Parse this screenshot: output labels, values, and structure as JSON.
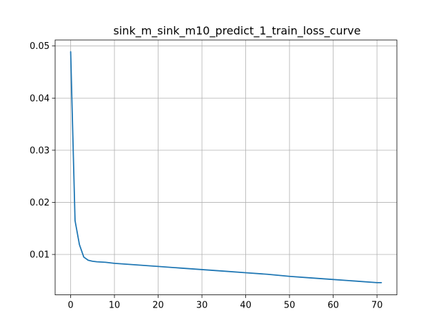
{
  "chart_data": {
    "type": "line",
    "title": "sink_m_sink_m10_predict_1_train_loss_curve",
    "xlabel": "",
    "ylabel": "",
    "xlim": [
      -3.55,
      74.55
    ],
    "ylim": [
      0.00225,
      0.05115
    ],
    "grid": true,
    "x_ticks": [
      0,
      10,
      20,
      30,
      40,
      50,
      60,
      70
    ],
    "x_tick_labels": [
      "0",
      "10",
      "20",
      "30",
      "40",
      "50",
      "60",
      "70"
    ],
    "y_ticks": [
      0.01,
      0.02,
      0.03,
      0.04,
      0.05
    ],
    "y_tick_labels": [
      "0.01",
      "0.02",
      "0.03",
      "0.04",
      "0.05"
    ],
    "series": [
      {
        "color": "#1f77b4",
        "x": [
          0,
          1,
          2,
          3,
          4,
          5,
          6,
          8,
          10,
          15,
          20,
          25,
          30,
          35,
          40,
          45,
          50,
          55,
          60,
          65,
          70,
          71
        ],
        "y": [
          0.0489,
          0.0165,
          0.0119,
          0.0095,
          0.0089,
          0.0087,
          0.0086,
          0.0085,
          0.0083,
          0.008,
          0.0077,
          0.0074,
          0.0071,
          0.0068,
          0.0065,
          0.0062,
          0.0058,
          0.0055,
          0.0052,
          0.0049,
          0.0046,
          0.0046
        ]
      }
    ]
  }
}
